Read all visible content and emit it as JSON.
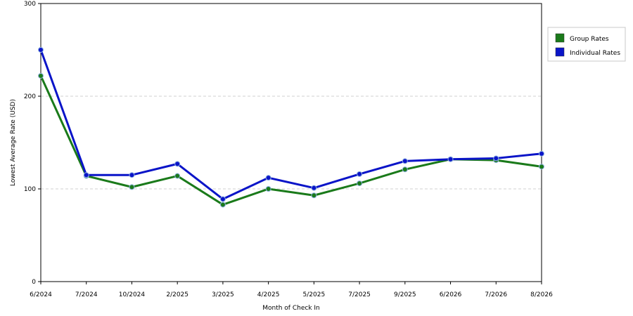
{
  "chart_data": {
    "type": "line",
    "title": "",
    "xlabel": "Month of Check In",
    "ylabel": "Lowest Average Rate (USD)",
    "categories": [
      "6/2024",
      "7/2024",
      "10/2024",
      "2/2025",
      "3/2025",
      "4/2025",
      "5/2025",
      "7/2025",
      "9/2025",
      "6/2026",
      "7/2026",
      "8/2026"
    ],
    "ylim": [
      0,
      300
    ],
    "yticks": [
      0,
      100,
      200,
      300
    ],
    "grid": true,
    "legend_position": "right",
    "series": [
      {
        "name": "Group Rates",
        "color": "#1a7a1a",
        "values": [
          222,
          114,
          102,
          114,
          83,
          100,
          93,
          106,
          121,
          132,
          131,
          124
        ]
      },
      {
        "name": "Individual Rates",
        "color": "#0a14c8",
        "values": [
          250,
          115,
          115,
          127,
          89,
          112,
          101,
          116,
          130,
          132,
          133,
          138
        ]
      }
    ]
  }
}
